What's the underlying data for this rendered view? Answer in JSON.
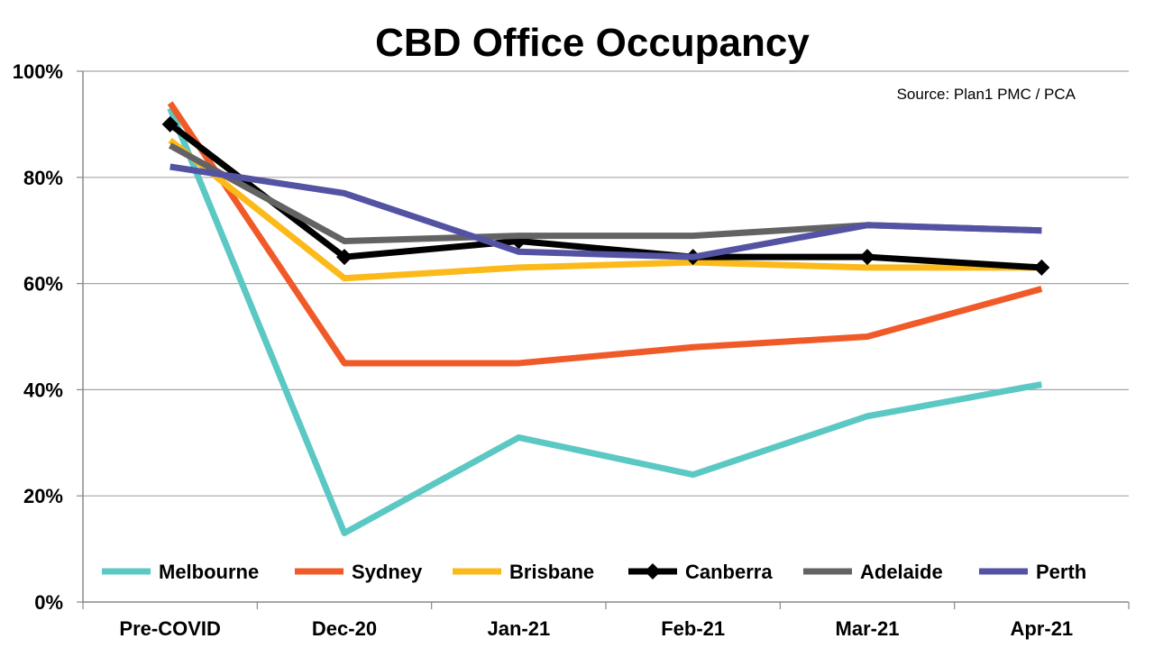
{
  "chart_data": {
    "type": "line",
    "title": "CBD Office Occupancy",
    "source": "Source: Plan1 PMC / PCA",
    "categories": [
      "Pre-COVID",
      "Dec-20",
      "Jan-21",
      "Feb-21",
      "Mar-21",
      "Apr-21"
    ],
    "ylim": [
      0,
      100
    ],
    "yticks": [
      0,
      20,
      40,
      60,
      80,
      100
    ],
    "ytick_labels": [
      "0%",
      "20%",
      "40%",
      "60%",
      "80%",
      "100%"
    ],
    "grid": true,
    "legend_position": "bottom-inside",
    "series": [
      {
        "name": "Melbourne",
        "color": "#5BC8C4",
        "marker": "none",
        "values": [
          93,
          13,
          31,
          24,
          35,
          41
        ]
      },
      {
        "name": "Sydney",
        "color": "#F05A28",
        "marker": "none",
        "values": [
          94,
          45,
          45,
          48,
          50,
          59
        ]
      },
      {
        "name": "Brisbane",
        "color": "#FBBA1A",
        "marker": "none",
        "values": [
          87,
          61,
          63,
          64,
          63,
          63
        ]
      },
      {
        "name": "Canberra",
        "color": "#000000",
        "marker": "diamond",
        "values": [
          90,
          65,
          68,
          65,
          65,
          63
        ]
      },
      {
        "name": "Adelaide",
        "color": "#636363",
        "marker": "none",
        "values": [
          86,
          68,
          69,
          69,
          71,
          70
        ]
      },
      {
        "name": "Perth",
        "color": "#5452A3",
        "marker": "none",
        "values": [
          82,
          77,
          66,
          65,
          71,
          70
        ]
      }
    ]
  }
}
